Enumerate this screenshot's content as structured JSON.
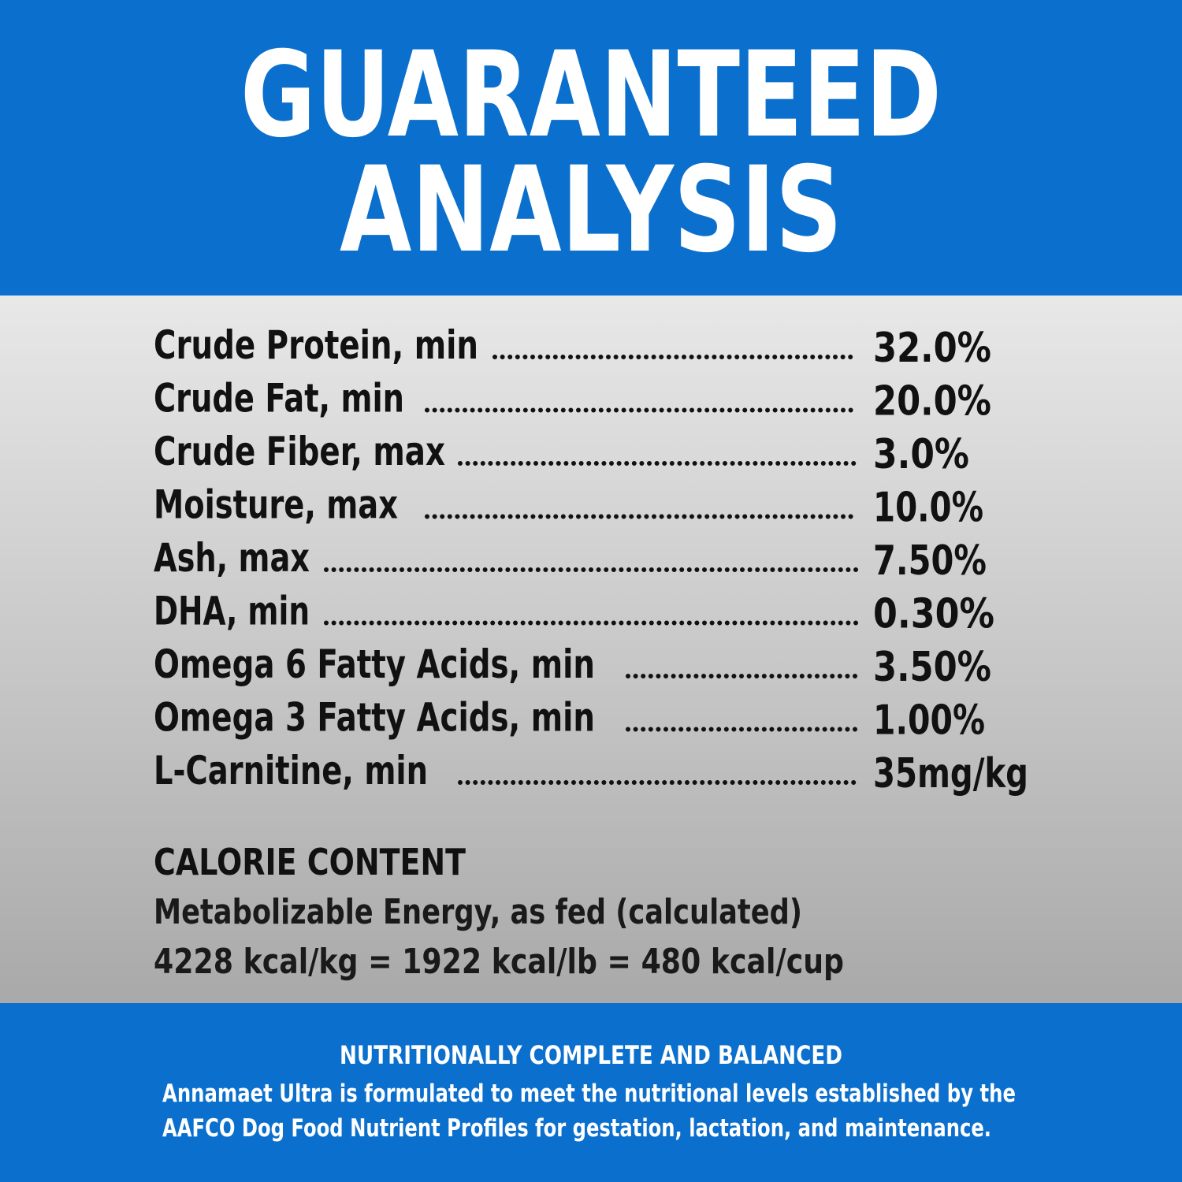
{
  "header": {
    "title_lines": [
      "GUARANTEED",
      "ANALYSIS"
    ]
  },
  "analysis": {
    "rows": [
      {
        "label": "Crude Protein, min",
        "value": "32.0%"
      },
      {
        "label": "Crude Fat, min",
        "value": "20.0%"
      },
      {
        "label": "Crude Fiber, max",
        "value": "3.0%"
      },
      {
        "label": "Moisture, max",
        "value": "10.0%"
      },
      {
        "label": "Ash, max",
        "value": "7.50%"
      },
      {
        "label": "DHA, min",
        "value": "0.30%"
      },
      {
        "label": "Omega 6 Fatty Acids, min",
        "value": "3.50%"
      },
      {
        "label": "Omega 3 Fatty Acids, min",
        "value": "1.00%"
      },
      {
        "label": "L-Carnitine, min",
        "value": "35mg/kg"
      }
    ]
  },
  "calorie": {
    "heading": "CALORIE CONTENT",
    "lines": [
      "Metabolizable Energy, as fed (calculated)",
      "4228 kcal/kg = 1922 kcal/lb = 480 kcal/cup"
    ]
  },
  "footer": {
    "heading": "NUTRITIONALLY COMPLETE AND BALANCED",
    "lines": [
      "Annamaet Ultra is formulated to meet the nutritional levels established by the",
      "AAFCO Dog Food Nutrient Profiles for gestation, lactation, and maintenance."
    ]
  }
}
